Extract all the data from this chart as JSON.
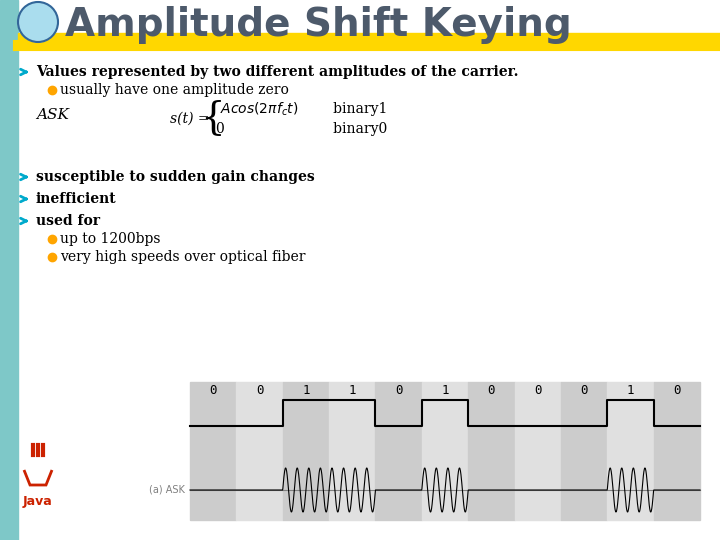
{
  "title": "Amplitude Shift Keying",
  "title_color": "#4d5a6b",
  "title_fontsize": 28,
  "header_bar_color": "#FFD700",
  "left_bar_color": "#7EC8C8",
  "background_color": "#FFFFFF",
  "bullet_color": "#FFA500",
  "arrow_color": "#00AACC",
  "text_color": "#000000",
  "bold_line1": "Values represented by two different amplitudes of the carrier.",
  "sub1": "usually have one amplitude zero",
  "formula_label": "ASK",
  "formula_top": "s(t) = {Acos(2πfₑt)   binary1",
  "formula_bot": "              0              binary0",
  "bullet2": "susceptible to sudden gain changes",
  "bullet3": "inefficient",
  "bullet4": "used for",
  "sub4a": "up to 1200bps",
  "sub4b": "very high speeds over optical fiber",
  "bits": [
    "0",
    "0",
    "1",
    "1",
    "0",
    "1",
    "0",
    "0",
    "0",
    "1",
    "0"
  ],
  "ask_label": "(a) ASK",
  "diagram_bg": "#D3D3D3",
  "diagram_white": "#FFFFFF"
}
